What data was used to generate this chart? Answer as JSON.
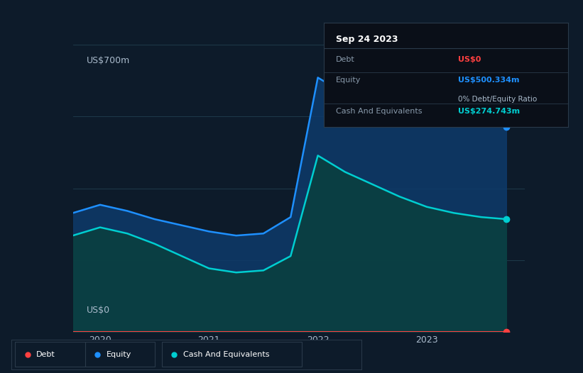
{
  "bg_color": "#0d1b2a",
  "plot_bg_color": "#0d1b2a",
  "title_y_label": "US$700m",
  "bottom_y_label": "US$0",
  "grid_color": "#1e3a4a",
  "x_ticks": [
    2020,
    2021,
    2022,
    2023
  ],
  "equity_color": "#1e90ff",
  "cash_color": "#00ced1",
  "debt_color": "#ff4040",
  "equity_fill": "#1a3a5c",
  "cash_fill": "#0e4a4a",
  "tooltip_bg": "#0a0f1a",
  "tooltip_border": "#2a3a4a",
  "tooltip_title": "Sep 24 2023",
  "tooltip_debt_label": "Debt",
  "tooltip_debt_value": "US$0",
  "tooltip_equity_label": "Equity",
  "tooltip_equity_value": "US$500.334m",
  "tooltip_ratio_value": "0% Debt/Equity Ratio",
  "tooltip_cash_label": "Cash And Equivalents",
  "tooltip_cash_value": "US$274.743m",
  "legend_labels": [
    "Debt",
    "Equity",
    "Cash And Equivalents"
  ],
  "x_data": [
    2019.75,
    2020.0,
    2020.25,
    2020.5,
    2020.75,
    2021.0,
    2021.25,
    2021.5,
    2021.75,
    2022.0,
    2022.25,
    2022.5,
    2022.75,
    2023.0,
    2023.25,
    2023.5,
    2023.73
  ],
  "equity_data": [
    290,
    310,
    295,
    275,
    260,
    245,
    235,
    240,
    280,
    620,
    580,
    560,
    540,
    525,
    515,
    508,
    500
  ],
  "cash_data": [
    235,
    255,
    240,
    215,
    185,
    155,
    145,
    150,
    185,
    430,
    390,
    360,
    330,
    305,
    290,
    280,
    275
  ],
  "debt_data": [
    0,
    0,
    0,
    0,
    0,
    0,
    0,
    0,
    0,
    0,
    0,
    0,
    0,
    0,
    0,
    0,
    0
  ],
  "ylim": [
    0,
    700
  ],
  "xlim": [
    2019.75,
    2023.9
  ]
}
